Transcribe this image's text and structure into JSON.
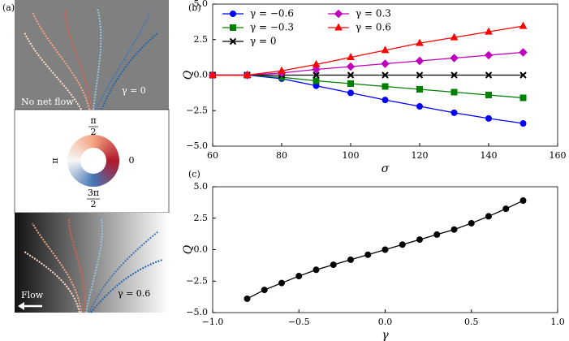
{
  "panel_labels": [
    "(a)",
    "(b)",
    "(c)"
  ],
  "panel_a": {
    "top_note": "No net flow",
    "top_gamma": "γ = 0",
    "wheel_top": {
      "num": "π",
      "den": "2"
    },
    "wheel_right": "0",
    "wheel_left": "π",
    "wheel_bottom": {
      "num": "3π",
      "den": "2"
    },
    "bottom_flow": "Flow",
    "bottom_gamma": "γ = 0.6"
  },
  "chart_data": [
    {
      "type": "line",
      "xlabel": "σ",
      "ylabel": "Q",
      "x": [
        60,
        70,
        80,
        90,
        100,
        110,
        120,
        130,
        140,
        150
      ],
      "series": [
        {
          "name": "γ = −0.6",
          "color": "#0000ff",
          "marker": "circle",
          "values": [
            0,
            0,
            -0.25,
            -0.75,
            -1.25,
            -1.75,
            -2.2,
            -2.65,
            -3.05,
            -3.4
          ]
        },
        {
          "name": "γ = −0.3",
          "color": "#008000",
          "marker": "square",
          "values": [
            0,
            0,
            -0.15,
            -0.4,
            -0.6,
            -0.8,
            -1.0,
            -1.2,
            -1.4,
            -1.6
          ]
        },
        {
          "name": "γ = 0",
          "color": "#000000",
          "marker": "x",
          "values": [
            0,
            0,
            0,
            0,
            0,
            0,
            0,
            0,
            0,
            0
          ]
        },
        {
          "name": "γ = 0.3",
          "color": "#bf00bf",
          "marker": "diamond",
          "values": [
            0,
            0,
            0.15,
            0.4,
            0.6,
            0.8,
            1.0,
            1.2,
            1.4,
            1.6
          ]
        },
        {
          "name": "γ = 0.6",
          "color": "#ff0000",
          "marker": "triangle",
          "values": [
            0,
            0,
            0.3,
            0.75,
            1.25,
            1.75,
            2.25,
            2.65,
            3.05,
            3.45
          ]
        }
      ],
      "xlim": [
        60,
        160
      ],
      "xticks": [
        60,
        80,
        100,
        120,
        140,
        160
      ],
      "ylim": [
        -5,
        5
      ],
      "yticks": [
        {
          "value": -5,
          "label": "−5.0"
        },
        {
          "value": -2.5,
          "label": "−2.5"
        },
        {
          "value": 0,
          "label": "0.0"
        },
        {
          "value": 2.5,
          "label": "2.5"
        },
        {
          "value": 5,
          "label": "5.0"
        }
      ],
      "legend": "upper left"
    },
    {
      "type": "line",
      "xlabel": "γ",
      "ylabel": "Q",
      "x": [
        -0.8,
        -0.7,
        -0.6,
        -0.5,
        -0.4,
        -0.3,
        -0.2,
        -0.1,
        0,
        0.1,
        0.2,
        0.3,
        0.4,
        0.5,
        0.6,
        0.7,
        0.8
      ],
      "series": [
        {
          "color": "#000000",
          "marker": "circle",
          "values": [
            -3.9,
            -3.2,
            -2.65,
            -2.1,
            -1.6,
            -1.2,
            -0.8,
            -0.4,
            0,
            0.4,
            0.8,
            1.2,
            1.6,
            2.1,
            2.65,
            3.25,
            3.9
          ]
        }
      ],
      "xlim": [
        -1,
        1
      ],
      "xticks": [
        {
          "value": -1,
          "label": "−1.0"
        },
        {
          "value": -0.5,
          "label": "−0.5"
        },
        {
          "value": 0,
          "label": "0.0"
        },
        {
          "value": 0.5,
          "label": "0.5"
        },
        {
          "value": 1,
          "label": "1.0"
        }
      ],
      "ylim": [
        -5,
        5
      ],
      "yticks": [
        {
          "value": -5,
          "label": "−5.0"
        },
        {
          "value": -2.5,
          "label": "−2.5"
        },
        {
          "value": 0,
          "label": "0.0"
        },
        {
          "value": 2.5,
          "label": "2.5"
        },
        {
          "value": 5,
          "label": "5.0"
        }
      ]
    }
  ]
}
